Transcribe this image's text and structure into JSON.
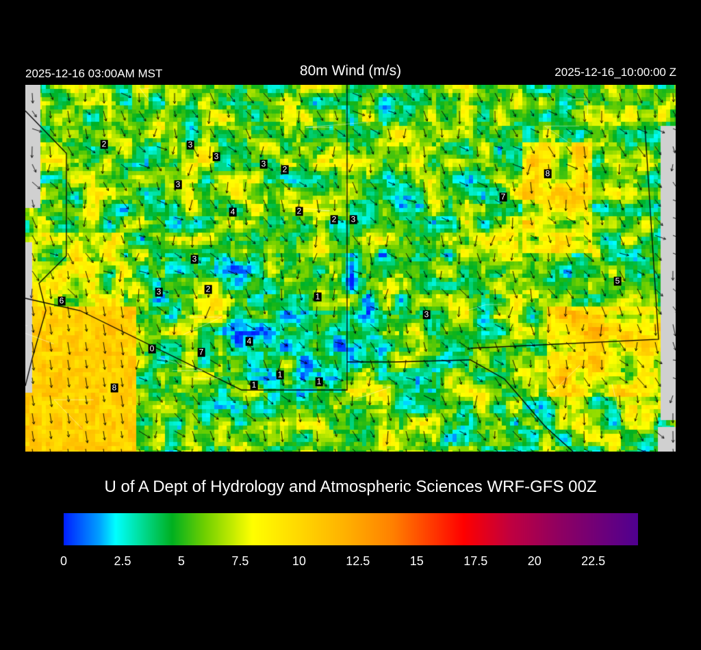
{
  "header": {
    "local_time": "2025-12-16 03:00AM MST",
    "title": "80m Wind (m/s)",
    "valid_time": "2025-12-16_10:00:00 Z"
  },
  "map": {
    "station_labels": [
      "2",
      "3",
      "3",
      "3",
      "2",
      "3",
      "4",
      "2",
      "2",
      "3",
      "8",
      "7",
      "3",
      "3",
      "2",
      "1",
      "6",
      "5",
      "3",
      "4",
      "0",
      "7",
      "1",
      "1",
      "1",
      "8"
    ]
  },
  "credit": "U of A Dept of Hydrology and Atmospheric Sciences WRF-GFS 00Z",
  "colorbar": {
    "range": [
      0,
      24.4
    ],
    "ticks": [
      "0",
      "2.5",
      "5",
      "7.5",
      "10",
      "12.5",
      "15",
      "17.5",
      "20",
      "22.5"
    ],
    "stops": [
      [
        0,
        "#0020ff"
      ],
      [
        1.5,
        "#00a0ff"
      ],
      [
        2.2,
        "#00ffff"
      ],
      [
        3.2,
        "#00e0a0"
      ],
      [
        4.6,
        "#00b020"
      ],
      [
        6,
        "#70d000"
      ],
      [
        8,
        "#ffff00"
      ],
      [
        10,
        "#ffd800"
      ],
      [
        12,
        "#ffb000"
      ],
      [
        14,
        "#ff8000"
      ],
      [
        15.5,
        "#ff4000"
      ],
      [
        17,
        "#ff0000"
      ],
      [
        19,
        "#c00040"
      ],
      [
        21,
        "#900060"
      ],
      [
        24.4,
        "#500090"
      ]
    ]
  }
}
